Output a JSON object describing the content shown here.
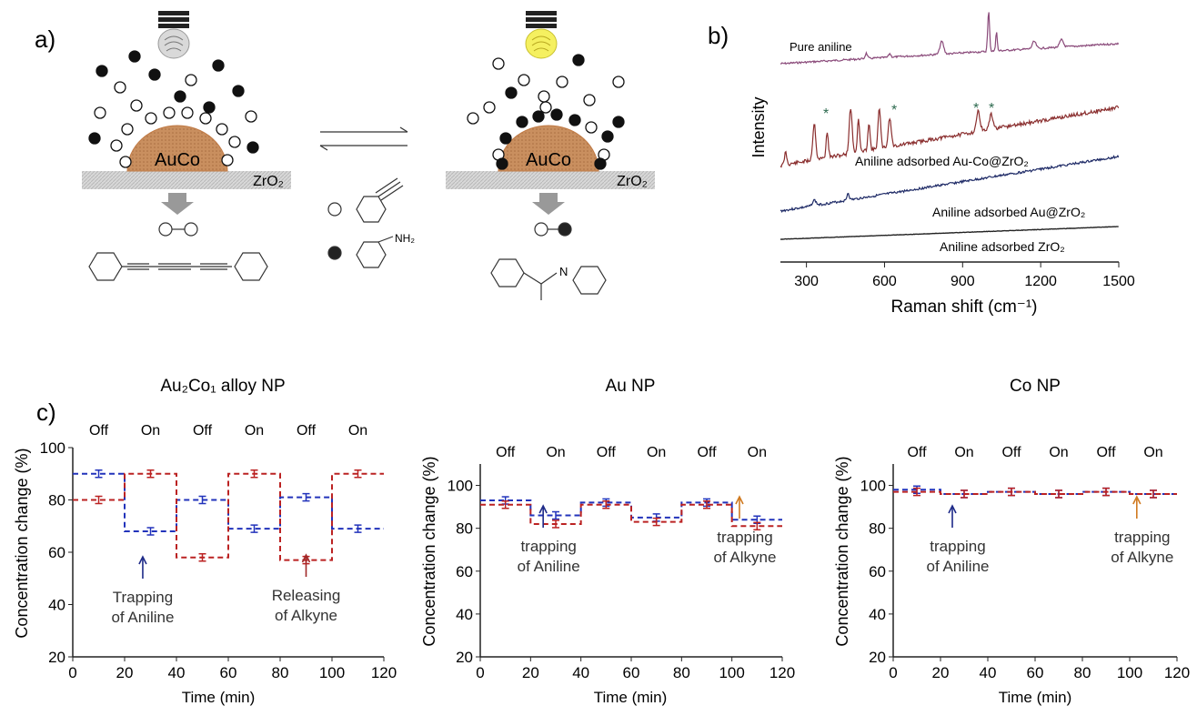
{
  "panel_a": {
    "label": "a)",
    "left": {
      "particle": "AuCo",
      "support": "ZrO₂"
    },
    "right": {
      "particle": "AuCo",
      "support": "ZrO₂"
    },
    "nh2": "NH₂"
  },
  "panel_b": {
    "label": "b)",
    "ylabel": "Intensity",
    "xlabel": "Raman shift (cm⁻¹)",
    "xticks": [
      "300",
      "600",
      "900",
      "1200",
      "1500"
    ],
    "trace_labels": [
      "Pure aniline",
      "Aniline adsorbed Au-Co@ZrO₂",
      "Aniline adsorbed Au@ZrO₂",
      "Aniline adsorbed ZrO₂"
    ],
    "star": "*",
    "colors": {
      "pure": "#8a4a7a",
      "auco": "#8a2e2e",
      "au": "#1e2a66",
      "zr": "#222222"
    }
  },
  "panel_c_label": "c)",
  "chart_data": [
    {
      "type": "line",
      "title": "Au₂Co₁ alloy NP",
      "xlabel": "Time (min)",
      "ylabel": "Concentration change (%)",
      "xlim": [
        0,
        120
      ],
      "ylim": [
        20,
        100
      ],
      "xticks": [
        "0",
        "20",
        "40",
        "60",
        "80",
        "100",
        "120"
      ],
      "yticks": [
        "20",
        "40",
        "60",
        "80",
        "100"
      ],
      "states": [
        "Off",
        "On",
        "Off",
        "On",
        "Off",
        "On"
      ],
      "x": [
        10,
        30,
        50,
        70,
        90,
        110
      ],
      "series": [
        {
          "color": "#2233bb",
          "values": [
            90,
            68,
            80,
            69,
            81,
            69
          ]
        },
        {
          "color": "#bb2222",
          "values": [
            80,
            90,
            58,
            90,
            57,
            90
          ]
        }
      ],
      "annotations": [
        {
          "text": [
            "Trapping",
            "of Aniline"
          ],
          "color": "#1e2a88",
          "x": 27
        },
        {
          "text": [
            "Releasing",
            "of Alkyne"
          ],
          "color": "#a02828",
          "x": 90
        }
      ]
    },
    {
      "type": "line",
      "title": "Au NP",
      "xlabel": "Time (min)",
      "ylabel": "Concentration change (%)",
      "xlim": [
        0,
        120
      ],
      "ylim": [
        20,
        110
      ],
      "xticks": [
        "0",
        "20",
        "40",
        "60",
        "80",
        "100",
        "120"
      ],
      "yticks": [
        "20",
        "40",
        "60",
        "80",
        "100"
      ],
      "states": [
        "Off",
        "On",
        "Off",
        "On",
        "Off",
        "On"
      ],
      "x": [
        10,
        30,
        50,
        70,
        90,
        110
      ],
      "series": [
        {
          "color": "#2233bb",
          "values": [
            93,
            86,
            92,
            85,
            92,
            84
          ]
        },
        {
          "color": "#bb2222",
          "values": [
            91,
            82,
            91,
            83,
            91,
            81
          ]
        }
      ],
      "annotations": [
        {
          "text": [
            "trapping",
            "of Aniline"
          ],
          "color": "#1e2a88",
          "x": 25
        },
        {
          "text": [
            "trapping",
            "of Alkyne"
          ],
          "color": "#d07a20",
          "x": 103
        }
      ]
    },
    {
      "type": "line",
      "title": "Co NP",
      "xlabel": "Time (min)",
      "ylabel": "Concentration change (%)",
      "xlim": [
        0,
        120
      ],
      "ylim": [
        20,
        110
      ],
      "xticks": [
        "0",
        "20",
        "40",
        "60",
        "80",
        "100",
        "120"
      ],
      "yticks": [
        "20",
        "40",
        "60",
        "80",
        "100"
      ],
      "states": [
        "Off",
        "On",
        "Off",
        "On",
        "Off",
        "On"
      ],
      "x": [
        10,
        30,
        50,
        70,
        90,
        110
      ],
      "series": [
        {
          "color": "#2233bb",
          "values": [
            98,
            96,
            97,
            96,
            97,
            96
          ]
        },
        {
          "color": "#bb2222",
          "values": [
            97,
            96,
            97,
            96,
            97,
            96
          ]
        }
      ],
      "annotations": [
        {
          "text": [
            "trapping",
            "of Aniline"
          ],
          "color": "#1e2a88",
          "x": 25
        },
        {
          "text": [
            "trapping",
            "of Alkyne"
          ],
          "color": "#d07a20",
          "x": 103
        }
      ]
    }
  ]
}
